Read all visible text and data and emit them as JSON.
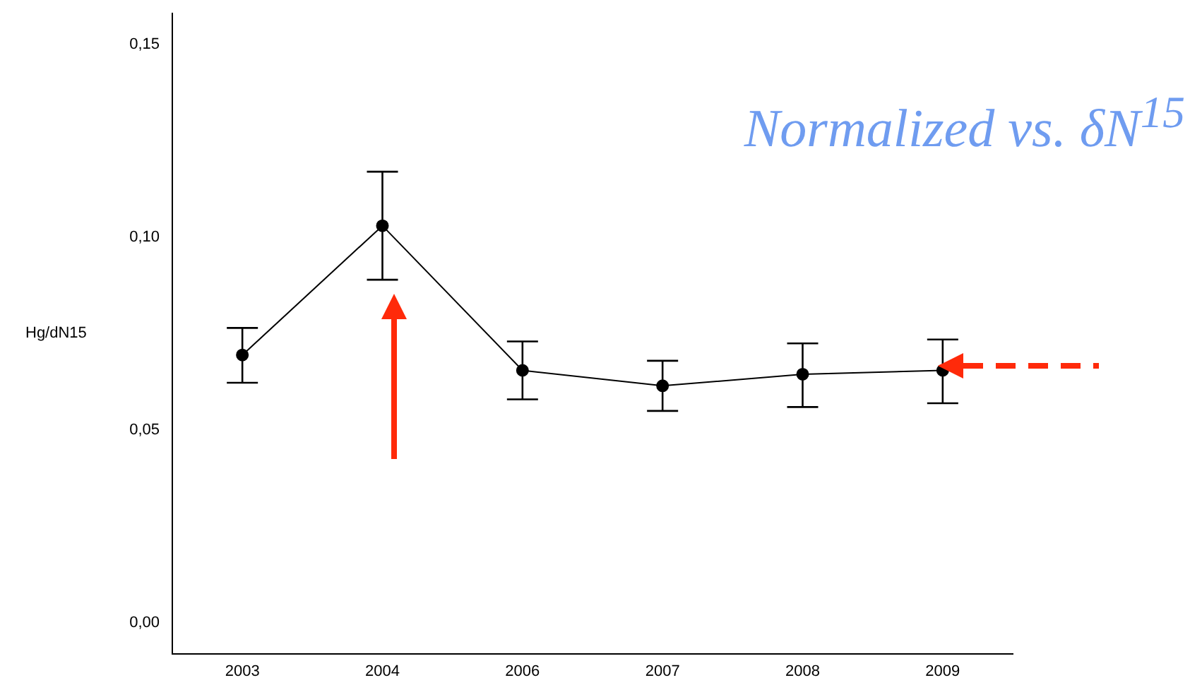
{
  "chart_data": {
    "type": "line",
    "title": "Normalized vs. δN$^{15}$",
    "ylabel": "Hg/dN15",
    "categories": [
      "2003",
      "2004",
      "2006",
      "2007",
      "2008",
      "2009"
    ],
    "values": [
      0.0695,
      0.103,
      0.0655,
      0.0615,
      0.0645,
      0.0655
    ],
    "errors": [
      [
        0.0623,
        0.0765
      ],
      [
        0.089,
        0.117
      ],
      [
        0.058,
        0.073
      ],
      [
        0.055,
        0.068
      ],
      [
        0.056,
        0.0725
      ],
      [
        0.057,
        0.0735
      ]
    ],
    "color": "#000000",
    "marker": "circle",
    "line_style": "solid",
    "grid": false,
    "ylim": [
      -0.008,
      0.158
    ],
    "yticks": [
      {
        "value": 0,
        "label": "0,00"
      },
      {
        "value": 0.05,
        "label": "0,05"
      },
      {
        "value": 0.1,
        "label": "0,10"
      },
      {
        "value": 0.15,
        "label": "0,15"
      }
    ]
  }
}
